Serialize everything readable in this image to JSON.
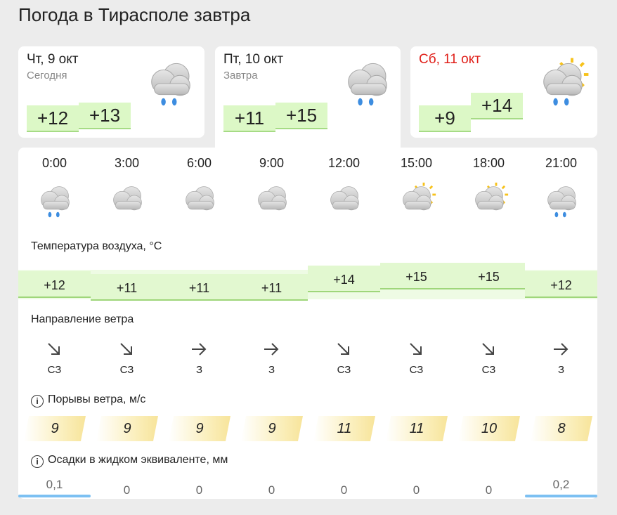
{
  "header": {
    "title": "Погода в Тирасполе завтра"
  },
  "days": [
    {
      "date": "Чт, 9 окт",
      "label": "Сегодня",
      "min": "+12",
      "max": "+13"
    },
    {
      "date": "Пт, 10 окт",
      "label": "Завтра",
      "min": "+11",
      "max": "+15"
    },
    {
      "date": "Сб, 11 окт",
      "min": "+9",
      "max": "+14"
    }
  ],
  "hourly": {
    "times": [
      "0:00",
      "3:00",
      "6:00",
      "9:00",
      "12:00",
      "15:00",
      "18:00",
      "21:00"
    ],
    "temperature_title": "Температура воздуха, °C",
    "temperatures": [
      "+12",
      "+11",
      "+11",
      "+11",
      "+14",
      "+15",
      "+15",
      "+12"
    ],
    "wind_title": "Направление ветра",
    "wind_directions": [
      "СЗ",
      "СЗ",
      "З",
      "З",
      "СЗ",
      "СЗ",
      "СЗ",
      "З"
    ],
    "gusts_title": "Порывы ветра, м/с",
    "gusts": [
      "9",
      "9",
      "9",
      "9",
      "11",
      "11",
      "10",
      "8"
    ],
    "precip_title": "Осадки в жидком эквиваленте, мм",
    "precip": [
      "0,1",
      "0",
      "0",
      "0",
      "0",
      "0",
      "0",
      "0,2"
    ]
  }
}
